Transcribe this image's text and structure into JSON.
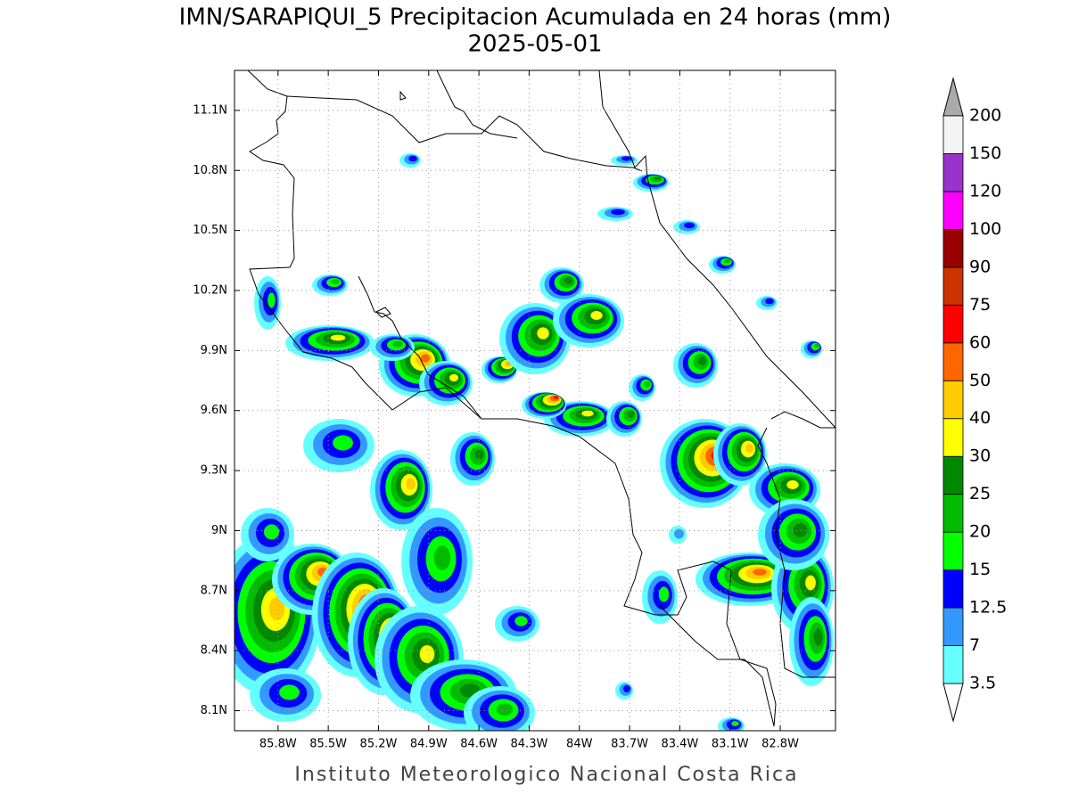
{
  "title": "IMN/SARAPIQUI_5 Precipitacion Acumulada en 24 horas (mm)",
  "subtitle": "2025-05-01",
  "footer": "Instituto Meteorologico Nacional Costa Rica",
  "map": {
    "xlim": [
      -86.06,
      -82.47
    ],
    "ylim": [
      8.0,
      11.3
    ],
    "xticks": [
      {
        "value": -85.8,
        "label": "85.8W"
      },
      {
        "value": -85.5,
        "label": "85.5W"
      },
      {
        "value": -85.2,
        "label": "85.2W"
      },
      {
        "value": -84.9,
        "label": "84.9W"
      },
      {
        "value": -84.6,
        "label": "84.6W"
      },
      {
        "value": -84.3,
        "label": "84.3W"
      },
      {
        "value": -84,
        "label": "84W"
      },
      {
        "value": -83.7,
        "label": "83.7W"
      },
      {
        "value": -83.4,
        "label": "83.4W"
      },
      {
        "value": -83.1,
        "label": "83.1W"
      },
      {
        "value": -82.8,
        "label": "82.8W"
      }
    ],
    "yticks": [
      {
        "value": 8.1,
        "label": "8.1N"
      },
      {
        "value": 8.4,
        "label": "8.4N"
      },
      {
        "value": 8.7,
        "label": "8.7N"
      },
      {
        "value": 9,
        "label": "9N"
      },
      {
        "value": 9.3,
        "label": "9.3N"
      },
      {
        "value": 9.6,
        "label": "9.6N"
      },
      {
        "value": 9.9,
        "label": "9.9N"
      },
      {
        "value": 10.2,
        "label": "10.2N"
      },
      {
        "value": 10.5,
        "label": "10.5N"
      },
      {
        "value": 10.8,
        "label": "10.8N"
      },
      {
        "value": 11.1,
        "label": "11.1N"
      }
    ],
    "grid": true
  },
  "colorbar": {
    "levels": [
      3.5,
      7,
      12.5,
      15,
      20,
      25,
      30,
      40,
      50,
      60,
      75,
      90,
      100,
      120,
      150,
      200
    ],
    "colors": [
      "#66ffff",
      "#3399ff",
      "#0000ff",
      "#00ff00",
      "#00bb00",
      "#008800",
      "#ffff00",
      "#ffcc00",
      "#ff6600",
      "#ff0000",
      "#cc3300",
      "#990000",
      "#ff00ff",
      "#9933cc",
      "#f4f4f4"
    ],
    "over_color": "#aaaaaa",
    "under_color": "#ffffff"
  }
}
